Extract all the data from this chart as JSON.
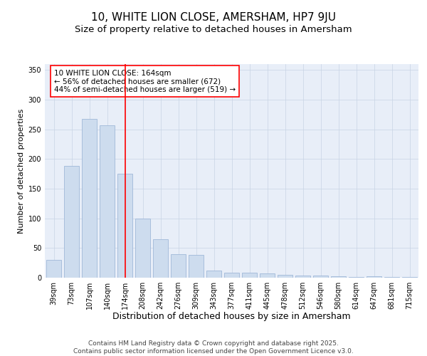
{
  "title": "10, WHITE LION CLOSE, AMERSHAM, HP7 9JU",
  "subtitle": "Size of property relative to detached houses in Amersham",
  "xlabel": "Distribution of detached houses by size in Amersham",
  "ylabel": "Number of detached properties",
  "categories": [
    "39sqm",
    "73sqm",
    "107sqm",
    "140sqm",
    "174sqm",
    "208sqm",
    "242sqm",
    "276sqm",
    "309sqm",
    "343sqm",
    "377sqm",
    "411sqm",
    "445sqm",
    "478sqm",
    "512sqm",
    "546sqm",
    "580sqm",
    "614sqm",
    "647sqm",
    "681sqm",
    "715sqm"
  ],
  "values": [
    30,
    188,
    268,
    257,
    175,
    100,
    65,
    40,
    38,
    12,
    9,
    8,
    7,
    5,
    4,
    4,
    3,
    1,
    2,
    1,
    1
  ],
  "bar_color": "#cddcee",
  "bar_edge_color": "#a0b8d8",
  "vline_x": 4,
  "vline_color": "red",
  "vline_linewidth": 1.2,
  "annotation_title": "10 WHITE LION CLOSE: 164sqm",
  "annotation_line1": "← 56% of detached houses are smaller (672)",
  "annotation_line2": "44% of semi-detached houses are larger (519) →",
  "annotation_box_color": "white",
  "annotation_box_edgecolor": "red",
  "ylim": [
    0,
    360
  ],
  "yticks": [
    0,
    50,
    100,
    150,
    200,
    250,
    300,
    350
  ],
  "grid_color": "#c8d4e4",
  "background_color": "#e8eef8",
  "footer_line1": "Contains HM Land Registry data © Crown copyright and database right 2025.",
  "footer_line2": "Contains public sector information licensed under the Open Government Licence v3.0.",
  "title_fontsize": 11,
  "subtitle_fontsize": 9.5,
  "xlabel_fontsize": 9,
  "ylabel_fontsize": 8,
  "tick_fontsize": 7,
  "footer_fontsize": 6.5,
  "annotation_fontsize": 7.5
}
